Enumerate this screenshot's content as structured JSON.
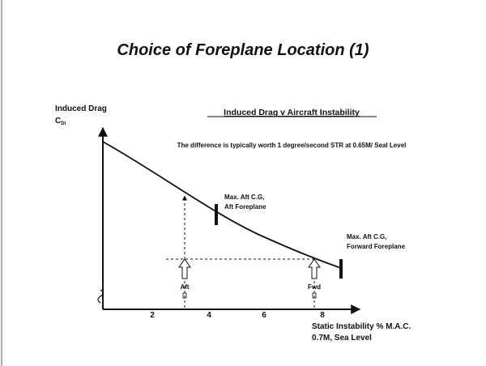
{
  "title": "Choice of Foreplane Location (1)",
  "y_axis_label": {
    "line1": "Induced Drag",
    "symbol": "C",
    "subscript": "Di"
  },
  "subtitle": "Induced Drag v Aircraft Instability",
  "note": "The difference is typically worth 1 degree/second STR at 0.65M/ Seal Level",
  "markers": [
    {
      "line1": "Max. Aft  C.G,",
      "line2": "Aft Foreplane"
    },
    {
      "line1": "Max. Aft  C.G,",
      "line2": "Forward Foreplane"
    }
  ],
  "arrows": [
    "Aft",
    "Fwd"
  ],
  "x_ticks": [
    "2",
    "4",
    "6",
    "8"
  ],
  "x_axis_label": {
    "line1": "Static Instability % M.A.C.",
    "line2": "0.7M, Sea Level"
  }
}
